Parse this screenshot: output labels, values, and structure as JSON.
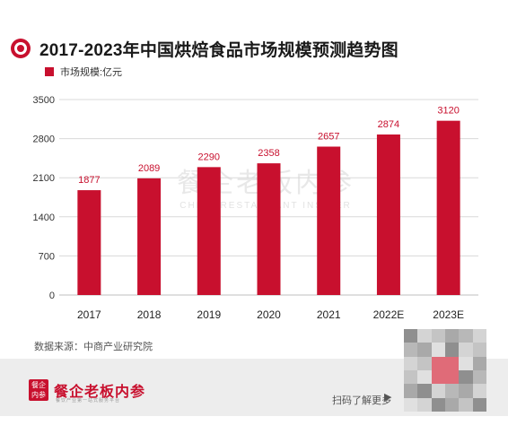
{
  "header": {
    "title": "2017-2023年中国烘焙食品市场规模预测趋势图"
  },
  "legend": {
    "label": "市场规模:亿元",
    "color": "#c8102e"
  },
  "chart_data": {
    "type": "bar",
    "title": "2017-2023年中国烘焙食品市场规模预测趋势图",
    "categories": [
      "2017",
      "2018",
      "2019",
      "2020",
      "2021",
      "2022E",
      "2023E"
    ],
    "series": [
      {
        "name": "市场规模:亿元",
        "values": [
          1877,
          2089,
          2290,
          2358,
          2657,
          2874,
          3120
        ]
      }
    ],
    "data_labels": [
      "1877",
      "2089",
      "2290",
      "2358",
      "2657",
      "2874",
      "3120"
    ],
    "yticks": [
      0,
      700,
      1400,
      2100,
      2800,
      3500
    ],
    "ytick_labels": [
      "0",
      "700",
      "1400",
      "2100",
      "2800",
      "3500"
    ],
    "ylim": [
      0,
      3500
    ],
    "xlabel": "",
    "ylabel": "",
    "grid": true,
    "legend_position": "top-left",
    "bar_color": "#c8102e",
    "grid_color": "#d9d9d9",
    "watermark": "餐企老板内参",
    "watermark_sub": "CHINA RESTAURANT INSIDER"
  },
  "source": {
    "text": "数据来源：中商产业研究院"
  },
  "footer": {
    "logo_icon_text": "餐企内参",
    "logo_text": "餐企老板内参",
    "logo_sub": "餐饮产业第一站式服务平台",
    "scan_text": "扫码了解更多",
    "scan_arrow": "▶",
    "qr_icon": "qr-code-icon"
  }
}
